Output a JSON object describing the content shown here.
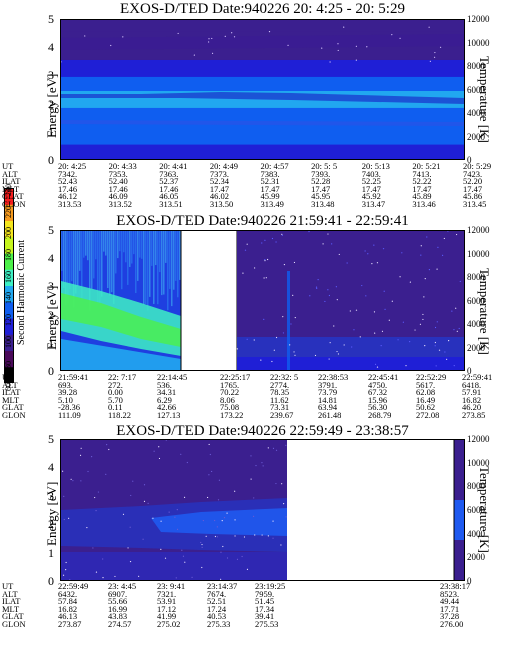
{
  "colorbar": {
    "label": "Second Harmonic Current",
    "ticks": [
      "60",
      "80",
      "100",
      "120",
      "140",
      "160",
      "180",
      "200",
      "220",
      "240"
    ],
    "colors": [
      "#000000",
      "#4a0a5a",
      "#3b1f8f",
      "#1f1fd6",
      "#0f5ef0",
      "#21a7f0",
      "#3ef0c4",
      "#4cf04a",
      "#c7f51e",
      "#f5e61e",
      "#f59a1e",
      "#f51e1e"
    ]
  },
  "panels": [
    {
      "title": "EXOS-D/TED   Date:940226  20: 4:25 - 20: 5:29",
      "ylabel": "Energy [eV]",
      "rlabel": "Temperature [K]",
      "yticks": [
        "0",
        "1",
        "2",
        "3",
        "4",
        "5"
      ],
      "rticks": [
        "0",
        "2000",
        "4000",
        "6000",
        "8000",
        "10000",
        "12000"
      ],
      "ephem_rows": [
        "UT",
        "ALT",
        "ILAT",
        "MLT",
        "GLAT",
        "GLON"
      ],
      "ephem_cols": [
        [
          "20: 4:25",
          "7342.",
          "52.43",
          "17.46",
          "46.12",
          "313.53"
        ],
        [
          "20: 4:33",
          "7353.",
          "52.40",
          "17.46",
          "46.09",
          "313.52"
        ],
        [
          "20: 4:41",
          "7363.",
          "52.37",
          "17.46",
          "46.05",
          "313.51"
        ],
        [
          "20: 4:49",
          "7373.",
          "52.34",
          "17.47",
          "46.02",
          "313.50"
        ],
        [
          "20: 4:57",
          "7383.",
          "52.31",
          "17.47",
          "45.99",
          "313.49"
        ],
        [
          "20: 5: 5",
          "7393.",
          "52.28",
          "17.47",
          "45.95",
          "313.48"
        ],
        [
          "20: 5:13",
          "7403.",
          "52.25",
          "17.47",
          "45.92",
          "313.47"
        ],
        [
          "20: 5:21",
          "7413.",
          "52.22",
          "17.47",
          "45.89",
          "313.46"
        ],
        [
          "20: 5:29",
          "7423.",
          "52.20",
          "17.47",
          "45.86",
          "313.45"
        ]
      ]
    },
    {
      "title": "EXOS-D/TED   Date:940226  21:59:41 - 22:59:41",
      "ylabel": "Energy [eV]",
      "rlabel": "Temperature [K]",
      "yticks": [
        "0",
        "1",
        "2",
        "3",
        "4",
        "5"
      ],
      "rticks": [
        "0",
        "2000",
        "4000",
        "6000",
        "8000",
        "10000",
        "12000"
      ],
      "ephem_rows": [
        "UT",
        "ALT",
        "ILAT",
        "MLT",
        "GLAT",
        "GLON"
      ],
      "ephem_cols": [
        [
          "21:59:41",
          "693.",
          "39.28",
          "5.10",
          "-28.36",
          "111.09"
        ],
        [
          "22: 7:17",
          "272.",
          "0.00",
          "5.70",
          "0.11",
          "118.22"
        ],
        [
          "22:14:45",
          "536.",
          "34.31",
          "6.29",
          "42.66",
          "127.13"
        ],
        [
          "22:25:17",
          "1765.",
          "70.22",
          "8.06",
          "75.08",
          "173.22"
        ],
        [
          "22:32: 5",
          "2774.",
          "78.35",
          "11.62",
          "73.31",
          "239.67"
        ],
        [
          "22:38:53",
          "3791.",
          "73.79",
          "14.81",
          "63.94",
          "261.48"
        ],
        [
          "22:45:41",
          "4750.",
          "67.32",
          "15.96",
          "56.30",
          "268.79"
        ],
        [
          "22:52:29",
          "5617.",
          "62.08",
          "16.49",
          "50.62",
          "272.08"
        ],
        [
          "22:59:41",
          "6418.",
          "57.91",
          "16.82",
          "46.20",
          "273.85"
        ]
      ]
    },
    {
      "title": "EXOS-D/TED   Date:940226  22:59:49 - 23:38:57",
      "ylabel": "Energy [eV]",
      "rlabel": "Temperature [K]",
      "yticks": [
        "0",
        "1",
        "2",
        "3",
        "4",
        "5"
      ],
      "rticks": [
        "0",
        "2000",
        "4000",
        "6000",
        "8000",
        "10000",
        "12000"
      ],
      "ephem_rows": [
        "UT",
        "ALT",
        "ILAT",
        "MLT",
        "GLAT",
        "GLON"
      ],
      "ephem_cols": [
        [
          "22:59:49",
          "6432.",
          "57.84",
          "16.82",
          "46.13",
          "273.87"
        ],
        [
          "23: 4:45",
          "6907.",
          "55.66",
          "16.99",
          "43.83",
          "274.57"
        ],
        [
          "23: 9:41",
          "7321.",
          "53.91",
          "17.12",
          "41.99",
          "275.02"
        ],
        [
          "23:14:37",
          "7674.",
          "52.51",
          "17.24",
          "40.53",
          "275.33"
        ],
        [
          "23:19:25",
          "7959.",
          "51.45",
          "17.34",
          "39.41",
          "275.53"
        ],
        [
          "23:38:17",
          "8523.",
          "49.44",
          "17.71",
          "37.28",
          "276.00"
        ]
      ]
    }
  ],
  "chart_data": [
    {
      "type": "heatmap",
      "title": "EXOS-D/TED   Date:940226  20: 4:25 - 20: 5:29",
      "ylabel": "Energy [eV]",
      "y2label": "Temperature [K]",
      "ylim": [
        0,
        5
      ],
      "y2lim": [
        0,
        12000
      ],
      "x": [
        "20: 4:25",
        "20: 4:33",
        "20: 4:41",
        "20: 4:49",
        "20: 4:57",
        "20: 5: 5",
        "20: 5:13",
        "20: 5:21",
        "20: 5:29"
      ],
      "colorbar_range": [
        60,
        240
      ],
      "energy_bands": [
        {
          "from": 0.0,
          "to": 0.6,
          "level": 105
        },
        {
          "from": 0.6,
          "to": 1.3,
          "level": 125
        },
        {
          "from": 1.3,
          "to": 1.9,
          "level": 120
        },
        {
          "from": 1.9,
          "to": 2.5,
          "level": 135
        },
        {
          "from": 2.5,
          "to": 3.0,
          "level": 125
        },
        {
          "from": 3.0,
          "to": 3.6,
          "level": 115
        },
        {
          "from": 3.6,
          "to": 4.2,
          "level": 100
        },
        {
          "from": 4.2,
          "to": 4.6,
          "level": 95
        },
        {
          "from": 4.6,
          "to": 5.0,
          "level": 100
        }
      ]
    },
    {
      "type": "heatmap",
      "title": "EXOS-D/TED   Date:940226  21:59:41 - 22:59:41",
      "ylabel": "Energy [eV]",
      "y2label": "Temperature [K]",
      "ylim": [
        0,
        5
      ],
      "y2lim": [
        0,
        12000
      ],
      "x": [
        "21:59:41",
        "22: 7:17",
        "22:14:45",
        "22:25:17",
        "22:32: 5",
        "22:38:53",
        "22:45:41",
        "22:52:29",
        "22:59:41"
      ],
      "data_gap": [
        "22:14:45",
        "22:25:17"
      ],
      "colorbar_range": [
        60,
        240
      ]
    },
    {
      "type": "heatmap",
      "title": "EXOS-D/TED   Date:940226  22:59:49 - 23:38:57",
      "ylabel": "Energy [eV]",
      "y2label": "Temperature [K]",
      "ylim": [
        0,
        5
      ],
      "y2lim": [
        0,
        12000
      ],
      "x": [
        "22:59:49",
        "23: 4:45",
        "23: 9:41",
        "23:14:37",
        "23:19:25",
        "23:38:17"
      ],
      "data_gap": [
        "23:19:25",
        "23:38:17"
      ],
      "colorbar_range": [
        60,
        240
      ]
    }
  ]
}
